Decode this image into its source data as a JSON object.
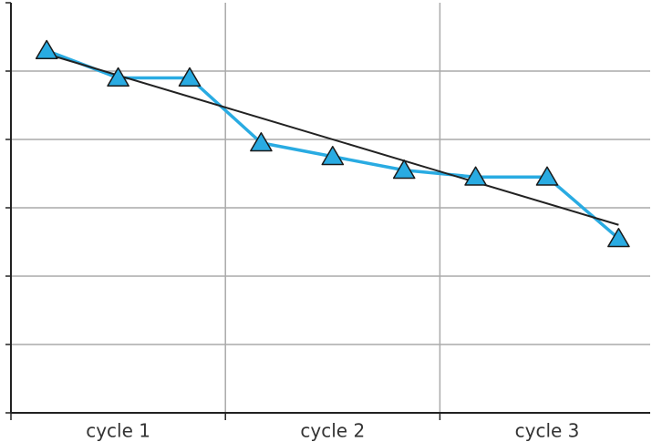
{
  "chart_data": {
    "type": "line",
    "categories": [
      null,
      "cycle 1",
      null,
      null,
      "cycle 2",
      null,
      null,
      "cycle 3",
      null
    ],
    "series": [
      {
        "color": "#29abe2",
        "values": [
          5.3,
          4.9,
          4.9,
          3.95,
          3.75,
          3.55,
          3.45,
          3.45,
          2.55
        ]
      }
    ],
    "trend": {
      "color": "#222222",
      "values": [
        5.25,
        2.75
      ]
    },
    "ylim": [
      0,
      6
    ],
    "yticks": [
      0,
      1,
      2,
      3,
      4,
      5,
      6
    ],
    "grid": true
  }
}
